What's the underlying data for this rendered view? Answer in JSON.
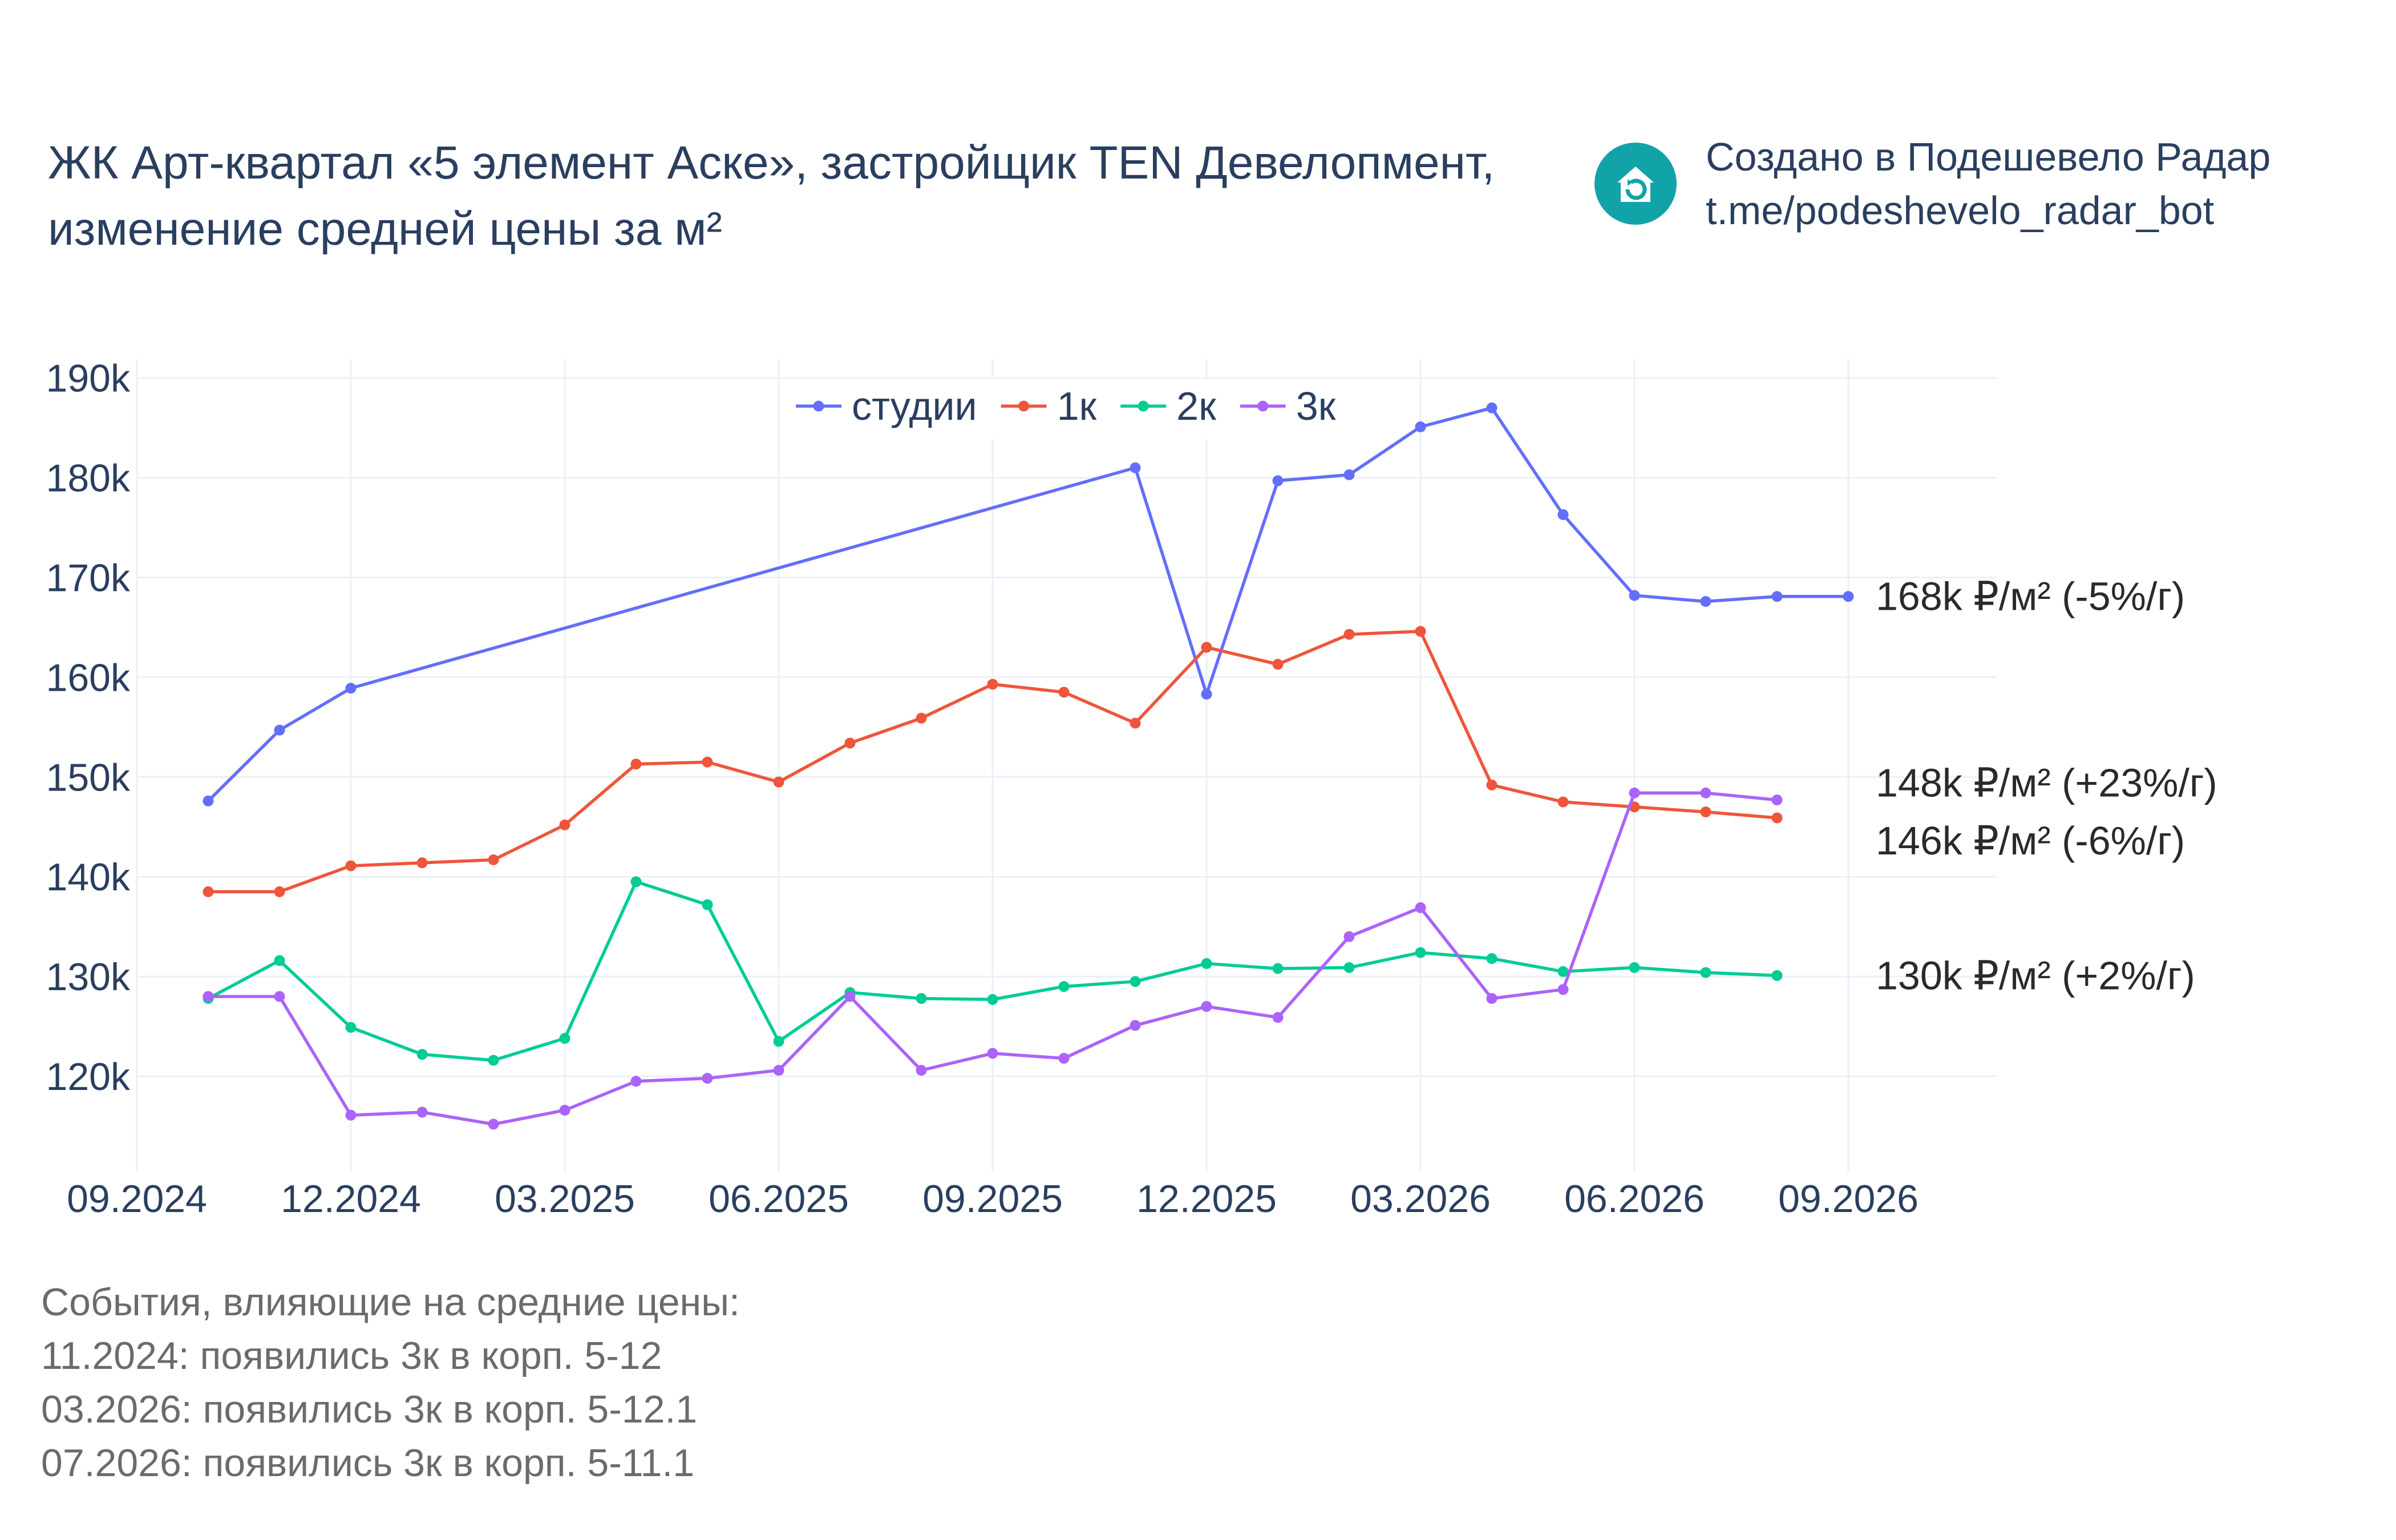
{
  "title_lines": [
    "ЖК Арт-квартал «5 элемент Аске», застройщик TEN Девелопмент,",
    "изменение средней цены за м²"
  ],
  "credit_lines": [
    "Создано в Подешевело Радар",
    "t.me/podeshevelo_radar_bot"
  ],
  "logo_icon": "house-refresh-icon",
  "events": {
    "heading": "События, влияющие на средние цены:",
    "items": [
      "11.2024: появились 3к в корп. 5-12",
      "03.2026: появились 3к в корп. 5-12.1",
      "07.2026: появились 3к в корп. 5-11.1"
    ]
  },
  "chart_data": {
    "type": "line",
    "x": [
      "2024-10",
      "2024-11",
      "2024-12",
      "2025-01",
      "2025-02",
      "2025-03",
      "2025-04",
      "2025-05",
      "2025-06",
      "2025-07",
      "2025-08",
      "2025-09",
      "2025-10",
      "2025-11",
      "2025-12",
      "2026-01",
      "2026-02",
      "2026-03",
      "2026-04",
      "2026-05",
      "2026-06",
      "2026-07",
      "2026-08",
      "2026-09"
    ],
    "x_ticks": [
      "09.2024",
      "12.2024",
      "03.2025",
      "06.2025",
      "09.2025",
      "12.2025",
      "03.2026",
      "06.2026",
      "09.2026"
    ],
    "x_tick_dates": [
      "2024-09",
      "2024-12",
      "2025-03",
      "2025-06",
      "2025-09",
      "2025-12",
      "2026-03",
      "2026-06",
      "2026-09"
    ],
    "y_ticks": [
      "120k",
      "130k",
      "140k",
      "150k",
      "160k",
      "170k",
      "180k",
      "190k"
    ],
    "y_tick_values": [
      120000,
      130000,
      140000,
      150000,
      160000,
      170000,
      180000,
      190000
    ],
    "ylim": [
      110000,
      192000
    ],
    "grid": true,
    "legend_position": "top-center",
    "series": [
      {
        "name": "студии",
        "color": "#636efa",
        "values": [
          147600,
          154700,
          158900,
          null,
          null,
          null,
          null,
          null,
          null,
          null,
          null,
          null,
          null,
          181000,
          158300,
          179700,
          180300,
          185100,
          187000,
          176300,
          168200,
          167600,
          168100,
          168100
        ],
        "end_label": "168k ₽/м² (-5%/г)"
      },
      {
        "name": "1к",
        "color": "#ef553b",
        "values": [
          138500,
          138500,
          141100,
          141400,
          141700,
          145200,
          151300,
          151500,
          149500,
          153400,
          155900,
          159300,
          158500,
          155400,
          163000,
          161300,
          164300,
          164600,
          149200,
          147500,
          147000,
          146500,
          145900,
          null
        ],
        "end_label": "146k ₽/м² (-6%/г)"
      },
      {
        "name": "2к",
        "color": "#00cc96",
        "values": [
          127800,
          131600,
          124900,
          122200,
          121600,
          123800,
          139500,
          137200,
          123500,
          128400,
          127800,
          127700,
          129000,
          129500,
          131300,
          130800,
          130900,
          132400,
          131800,
          130500,
          130900,
          130400,
          130100,
          null
        ],
        "end_label": "130k ₽/м² (+2%/г)"
      },
      {
        "name": "3к",
        "color": "#ab63fa",
        "values": [
          128000,
          128000,
          116100,
          116400,
          115200,
          116600,
          119500,
          119800,
          120600,
          128000,
          120600,
          122300,
          121800,
          125100,
          127000,
          125900,
          134000,
          136900,
          127800,
          128700,
          148400,
          148400,
          147700,
          null
        ],
        "end_label": "148k ₽/м² (+23%/г)"
      }
    ]
  }
}
